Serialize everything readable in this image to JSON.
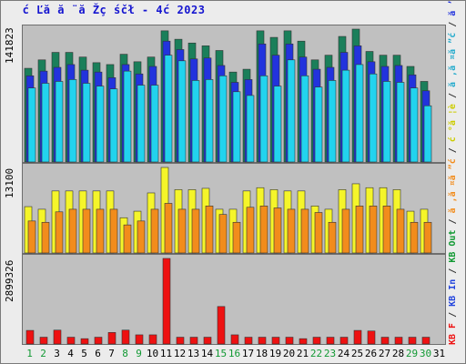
{
  "title": "ć Ľă  ă ¨ă Žç śčł  - 4ć   2023",
  "colors": {
    "background": "#ececec",
    "panel": "#c0c0c0",
    "pages": "#1a7f5a",
    "files": "#2233dd",
    "hits": "#22d3ee",
    "visits": "#f5f52a",
    "visitors": "#f28c1c",
    "bandwidth": "#ee1111",
    "weekday": "#000000",
    "weekend": "#119933"
  },
  "legend": {
    "items": [
      {
        "text": "KB F",
        "color": "#ee1111"
      },
      {
        "text": " / ",
        "color": "#333333"
      },
      {
        "text": "KB In",
        "color": "#2244dd"
      },
      {
        "text": " / ",
        "color": "#333333"
      },
      {
        "text": "KB Out",
        "color": "#119933"
      },
      {
        "text": " / ",
        "color": "#333333"
      },
      {
        "text": "ă ‚ă ¤ă ”ć ",
        "color": "#f28c1c"
      },
      {
        "text": " / ",
        "color": "#333333"
      },
      {
        "text": "ć °ă ¦è ",
        "color": "#cccc00"
      },
      {
        "text": " / ",
        "color": "#333333"
      },
      {
        "text": "ă ‚ă ¤ă ”ć ",
        "color": "#22aacc"
      },
      {
        "text": " / ",
        "color": "#333333"
      },
      {
        "text": "ă ’ç ¶ă ”",
        "color": "#2233dd"
      },
      {
        "text": " / ",
        "color": "#333333"
      },
      {
        "text": "ă Ťă ¤",
        "color": "#1a7f5a"
      }
    ]
  },
  "chart_data": [
    {
      "type": "bar",
      "ylabel": "141823",
      "ymax": 141823,
      "categories": [
        "1",
        "2",
        "3",
        "4",
        "5",
        "6",
        "7",
        "8",
        "9",
        "10",
        "11",
        "12",
        "13",
        "14",
        "15",
        "16",
        "17",
        "18",
        "19",
        "20",
        "21",
        "22",
        "23",
        "24",
        "25",
        "26",
        "27",
        "28",
        "29",
        "30",
        "31"
      ],
      "series": [
        {
          "key": "pages",
          "values": [
            100000,
            109000,
            117000,
            117000,
            112000,
            106000,
            104000,
            115000,
            107000,
            112000,
            140000,
            131000,
            127000,
            124000,
            119000,
            96000,
            99000,
            140000,
            133000,
            140000,
            129000,
            109000,
            114000,
            134000,
            141823,
            118000,
            114000,
            114000,
            102000,
            86000,
            0
          ]
        },
        {
          "key": "files",
          "values": [
            92000,
            97000,
            101000,
            104000,
            98000,
            96000,
            90000,
            104000,
            94000,
            102000,
            129000,
            120000,
            110000,
            111000,
            103000,
            85000,
            88000,
            126000,
            114000,
            126000,
            112000,
            99000,
            101000,
            117000,
            124000,
            107000,
            102000,
            103000,
            93000,
            76000,
            0
          ]
        },
        {
          "key": "hits",
          "values": [
            79000,
            84000,
            86000,
            88000,
            84000,
            81000,
            78000,
            97000,
            82000,
            82000,
            114000,
            108000,
            87000,
            88000,
            92000,
            75000,
            71000,
            92000,
            81000,
            109000,
            92000,
            80000,
            87000,
            98000,
            104000,
            94000,
            86000,
            85000,
            79000,
            60000,
            0
          ]
        }
      ]
    },
    {
      "type": "bar",
      "ylabel": "13100",
      "ymax": 13100,
      "categories": [
        "1",
        "2",
        "3",
        "4",
        "5",
        "6",
        "7",
        "8",
        "9",
        "10",
        "11",
        "12",
        "13",
        "14",
        "15",
        "16",
        "17",
        "18",
        "19",
        "20",
        "21",
        "22",
        "23",
        "24",
        "25",
        "26",
        "27",
        "28",
        "29",
        "30",
        "31"
      ],
      "series": [
        {
          "key": "visits",
          "values": [
            7100,
            6700,
            9500,
            9500,
            9500,
            9500,
            9500,
            5400,
            6400,
            9200,
            13100,
            9700,
            9700,
            9900,
            6700,
            6700,
            9500,
            10000,
            9700,
            9500,
            9500,
            7200,
            6700,
            9700,
            10600,
            10000,
            10000,
            9700,
            6400,
            6700,
            0
          ]
        },
        {
          "key": "visitors",
          "values": [
            4900,
            4700,
            6300,
            6700,
            6700,
            6700,
            6700,
            4300,
            4900,
            6700,
            7600,
            6700,
            6700,
            7200,
            5900,
            4700,
            7000,
            7200,
            6900,
            6700,
            6700,
            6200,
            4700,
            6700,
            7200,
            7200,
            7200,
            6700,
            4700,
            4700,
            0
          ]
        }
      ]
    },
    {
      "type": "bar",
      "ylabel": "2899326",
      "ymax": 2899326,
      "categories": [
        "1",
        "2",
        "3",
        "4",
        "5",
        "6",
        "7",
        "8",
        "9",
        "10",
        "11",
        "12",
        "13",
        "14",
        "15",
        "16",
        "17",
        "18",
        "19",
        "20",
        "21",
        "22",
        "23",
        "24",
        "25",
        "26",
        "27",
        "28",
        "29",
        "30",
        "31"
      ],
      "series": [
        {
          "key": "bandwidth",
          "values": [
            460000,
            230000,
            470000,
            230000,
            180000,
            230000,
            390000,
            470000,
            310000,
            310000,
            2899326,
            230000,
            230000,
            230000,
            1270000,
            310000,
            230000,
            230000,
            230000,
            230000,
            180000,
            230000,
            230000,
            230000,
            460000,
            440000,
            230000,
            230000,
            230000,
            230000,
            0
          ]
        }
      ]
    }
  ],
  "weekend_days": [
    1,
    2,
    8,
    9,
    15,
    16,
    22,
    23,
    29,
    30
  ]
}
